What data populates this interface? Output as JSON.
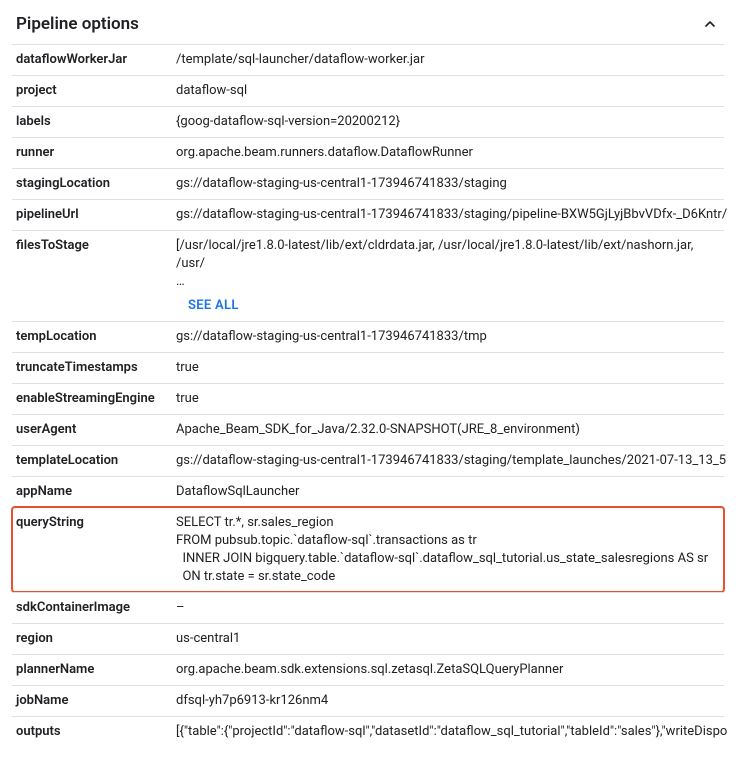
{
  "header": {
    "title": "Pipeline options"
  },
  "seeAllLabel": "SEE ALL",
  "options": [
    {
      "key": "dataflowWorkerJar",
      "value": "/template/sql-launcher/dataflow-worker.jar"
    },
    {
      "key": "project",
      "value": "dataflow-sql"
    },
    {
      "key": "labels",
      "value": "{goog-dataflow-sql-version=20200212}"
    },
    {
      "key": "runner",
      "value": "org.apache.beam.runners.dataflow.DataflowRunner"
    },
    {
      "key": "stagingLocation",
      "value": "gs://dataflow-staging-us-central1-173946741833/staging"
    },
    {
      "key": "pipelineUrl",
      "value": "gs://dataflow-staging-us-central1-173946741833/staging/pipeline-BXW5GjLyjBbvVDfx-_D6Kntr/",
      "truncate": true
    },
    {
      "key": "filesToStage",
      "value": "[/usr/local/jre1.8.0-latest/lib/ext/cldrdata.jar, /usr/local/jre1.8.0-latest/lib/ext/nashorn.jar, /usr/\n…",
      "seeAll": true
    },
    {
      "key": "tempLocation",
      "value": "gs://dataflow-staging-us-central1-173946741833/tmp"
    },
    {
      "key": "truncateTimestamps",
      "value": "true"
    },
    {
      "key": "enableStreamingEngine",
      "value": "true"
    },
    {
      "key": "userAgent",
      "value": "Apache_Beam_SDK_for_Java/2.32.0-SNAPSHOT(JRE_8_environment)"
    },
    {
      "key": "templateLocation",
      "value": "gs://dataflow-staging-us-central1-173946741833/staging/template_launches/2021-07-13_13_5",
      "truncate": true
    },
    {
      "key": "appName",
      "value": "DataflowSqlLauncher"
    },
    {
      "key": "queryString",
      "value": "SELECT tr.*, sr.sales_region\nFROM pubsub.topic.`dataflow-sql`.transactions as tr\n  INNER JOIN bigquery.table.`dataflow-sql`.dataflow_sql_tutorial.us_state_salesregions AS sr\n  ON tr.state = sr.state_code",
      "highlight": true
    },
    {
      "key": "sdkContainerImage",
      "value": "–"
    },
    {
      "key": "region",
      "value": "us-central1"
    },
    {
      "key": "plannerName",
      "value": "org.apache.beam.sdk.extensions.sql.zetasql.ZetaSQLQueryPlanner"
    },
    {
      "key": "jobName",
      "value": "dfsql-yh7p6913-kr126nm4"
    },
    {
      "key": "outputs",
      "value": "[{\"table\":{\"projectId\":\"dataflow-sql\",\"datasetId\":\"dataflow_sql_tutorial\",\"tableId\":\"sales\"},\"writeDispo",
      "truncate": true
    }
  ]
}
